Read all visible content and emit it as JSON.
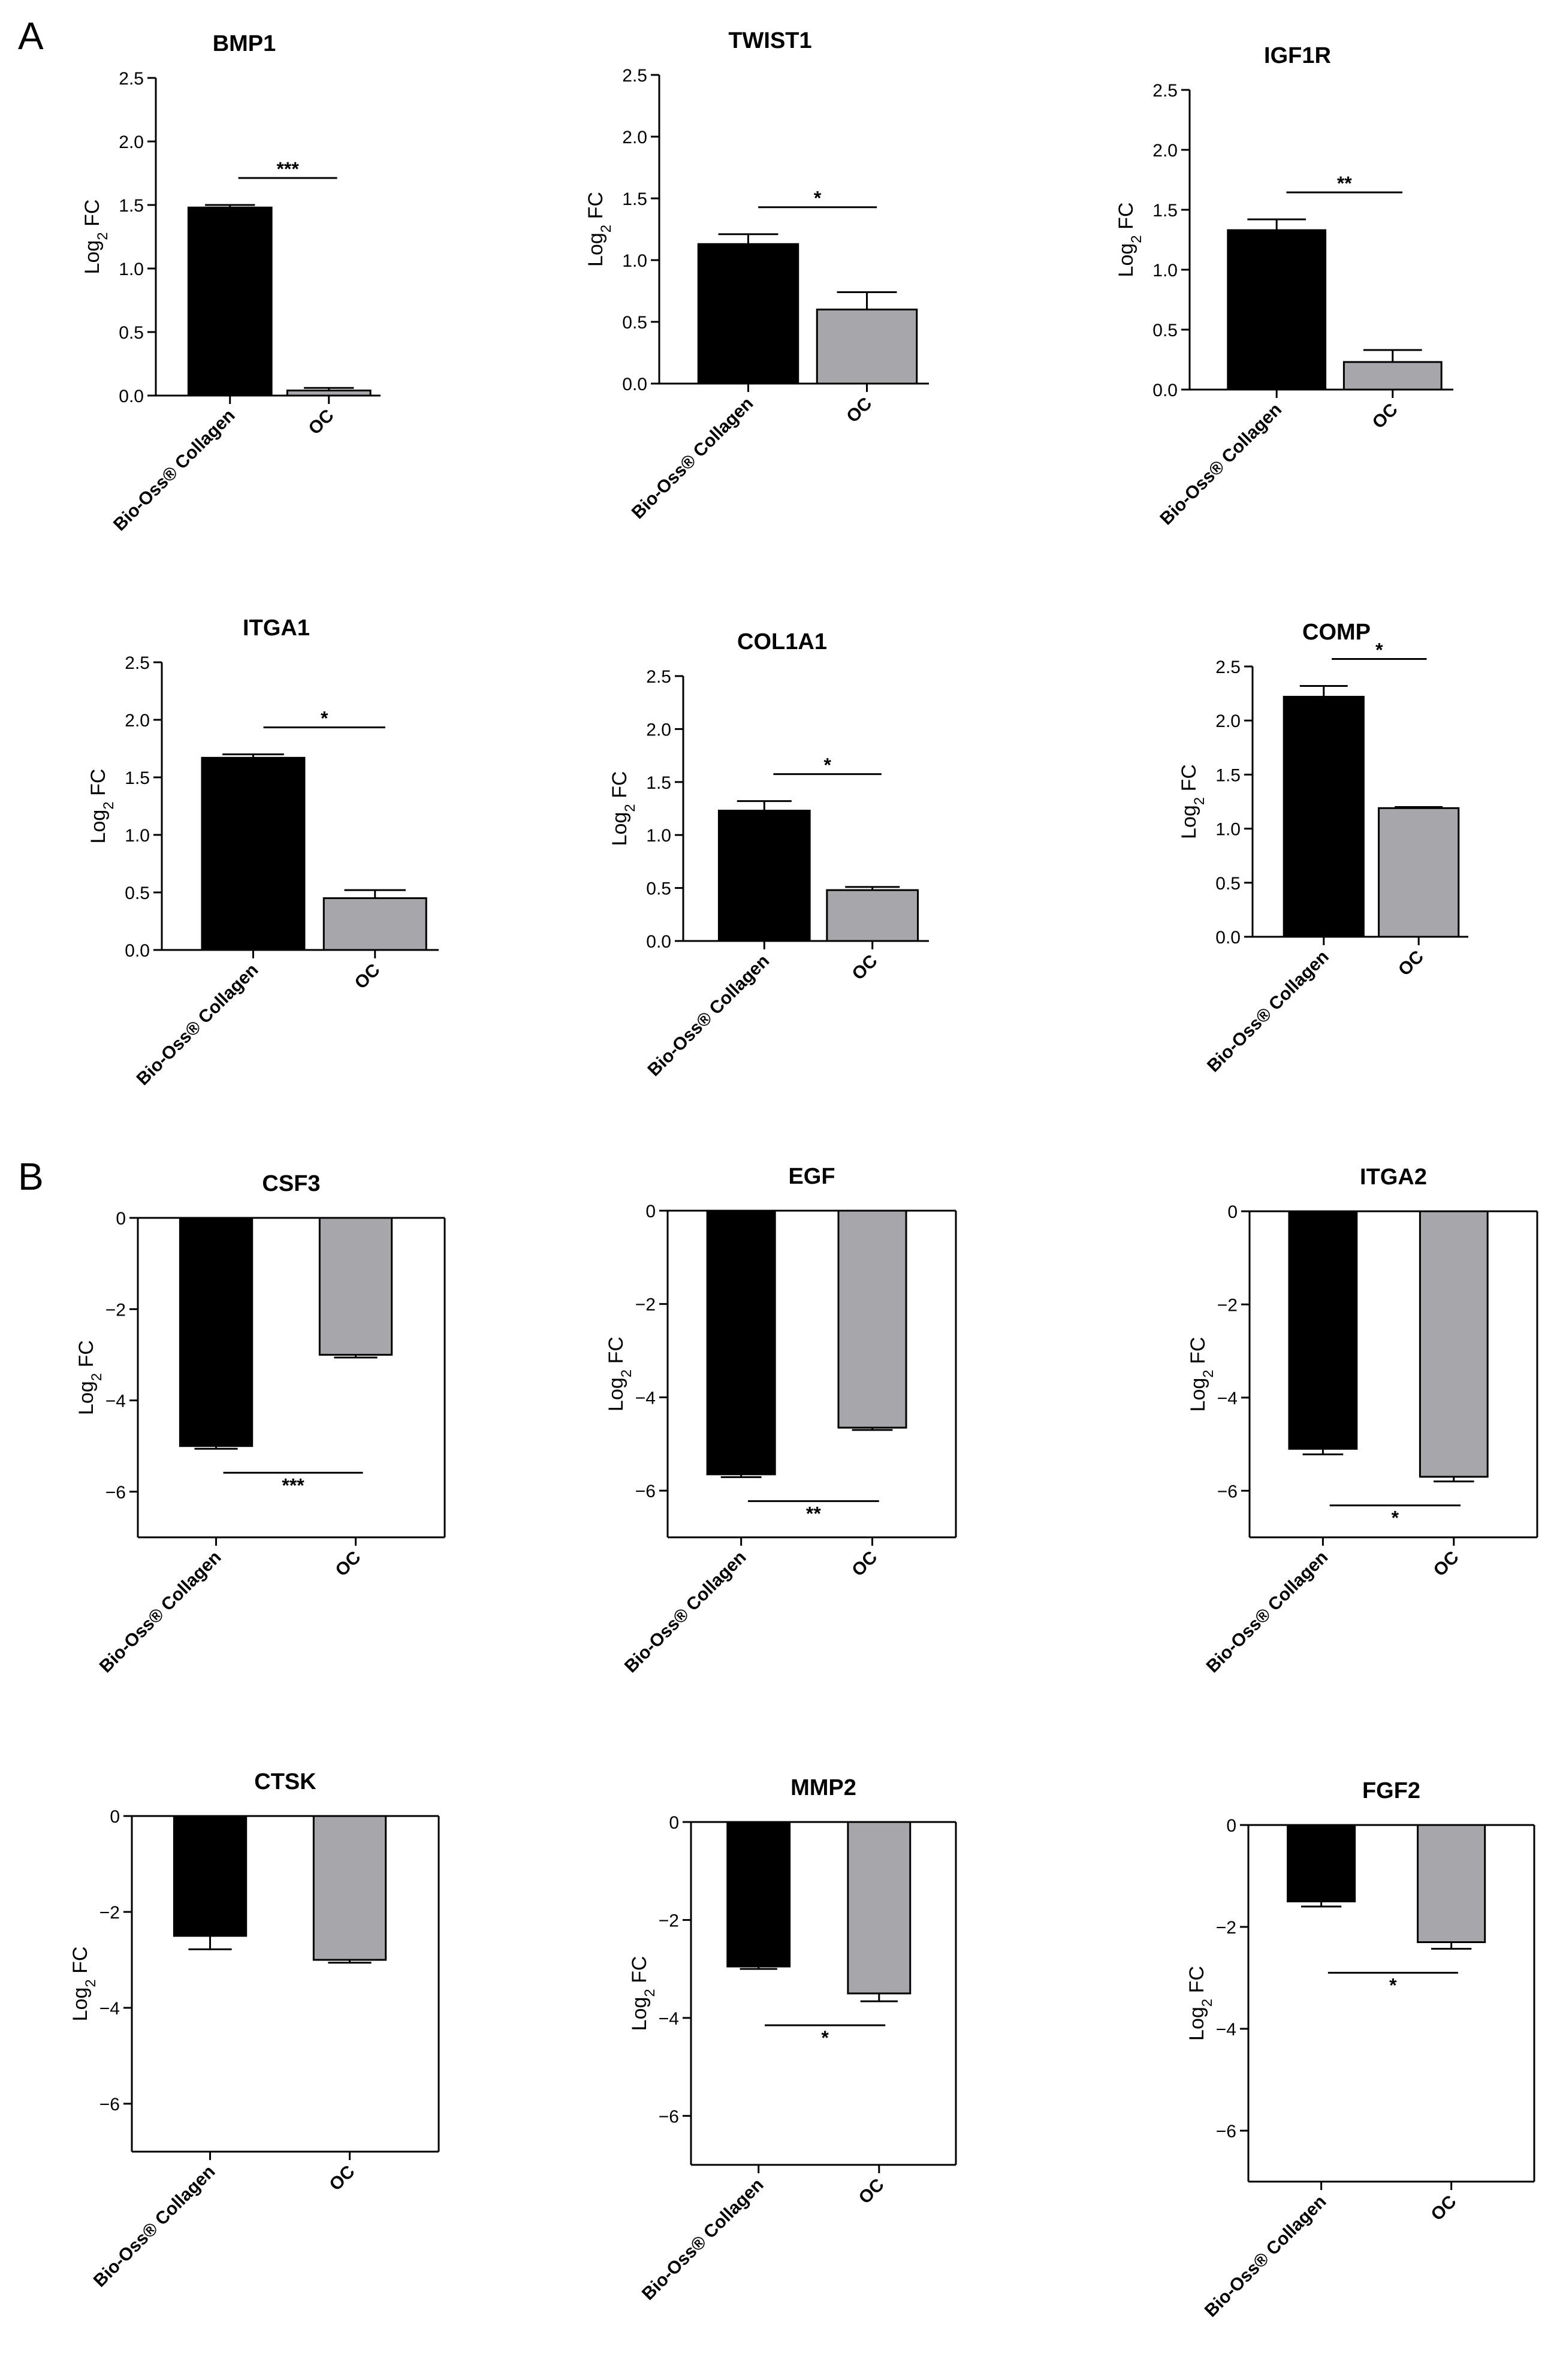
{
  "panels": [
    {
      "letter": "A"
    },
    {
      "letter": "B"
    }
  ],
  "colors": {
    "group1": "#000000",
    "group2": "#a7a7ab",
    "axis": "#000000"
  },
  "chart_data": [
    {
      "panel": "A",
      "type": "bar",
      "title": "BMP1",
      "ylabel": "Log",
      "ylabel_sub": "2",
      "ylabel_suffix": " FC",
      "categories": [
        "Bio-Oss® Collagen",
        "OC"
      ],
      "values": [
        1.48,
        0.04
      ],
      "errors": [
        0.02,
        0.02
      ],
      "ylim": [
        0,
        2.5
      ],
      "ticks": [
        "0.0",
        "0.5",
        "1.0",
        "1.5",
        "2.0",
        "2.5"
      ],
      "significance": "***"
    },
    {
      "panel": "A",
      "type": "bar",
      "title": "TWIST1",
      "ylabel": "Log",
      "ylabel_sub": "2",
      "ylabel_suffix": " FC",
      "categories": [
        "Bio-Oss® Collagen",
        "OC"
      ],
      "values": [
        1.13,
        0.6
      ],
      "errors": [
        0.08,
        0.14
      ],
      "ylim": [
        0,
        2.5
      ],
      "ticks": [
        "0.0",
        "0.5",
        "1.0",
        "1.5",
        "2.0",
        "2.5"
      ],
      "significance": "*"
    },
    {
      "panel": "A",
      "type": "bar",
      "title": "IGF1R",
      "ylabel": "Log",
      "ylabel_sub": "2",
      "ylabel_suffix": " FC",
      "categories": [
        "Bio-Oss® Collagen",
        "OC"
      ],
      "values": [
        1.33,
        0.23
      ],
      "errors": [
        0.09,
        0.1
      ],
      "ylim": [
        0,
        2.5
      ],
      "ticks": [
        "0.0",
        "0.5",
        "1.0",
        "1.5",
        "2.0",
        "2.5"
      ],
      "significance": "**"
    },
    {
      "panel": "A",
      "type": "bar",
      "title": "ITGA1",
      "ylabel": "Log",
      "ylabel_sub": "2",
      "ylabel_suffix": " FC",
      "categories": [
        "Bio-Oss® Collagen",
        "OC"
      ],
      "values": [
        1.67,
        0.45
      ],
      "errors": [
        0.03,
        0.07
      ],
      "ylim": [
        0,
        2.5
      ],
      "ticks": [
        "0.0",
        "0.5",
        "1.0",
        "1.5",
        "2.0",
        "2.5"
      ],
      "significance": "*"
    },
    {
      "panel": "A",
      "type": "bar",
      "title": "COL1A1",
      "ylabel": "Log",
      "ylabel_sub": "2",
      "ylabel_suffix": " FC",
      "categories": [
        "Bio-Oss® Collagen",
        "OC"
      ],
      "values": [
        1.23,
        0.48
      ],
      "errors": [
        0.09,
        0.03
      ],
      "ylim": [
        0,
        2.5
      ],
      "ticks": [
        "0.0",
        "0.5",
        "1.0",
        "1.5",
        "2.0",
        "2.5"
      ],
      "significance": "*"
    },
    {
      "panel": "A",
      "type": "bar",
      "title": "COMP",
      "ylabel": "Log",
      "ylabel_sub": "2",
      "ylabel_suffix": " FC",
      "categories": [
        "Bio-Oss® Collagen",
        "OC"
      ],
      "values": [
        2.22,
        1.19
      ],
      "errors": [
        0.1,
        0.01
      ],
      "ylim": [
        0,
        2.5
      ],
      "ticks": [
        "0.0",
        "0.5",
        "1.0",
        "1.5",
        "2.0",
        "2.5"
      ],
      "significance": "*"
    },
    {
      "panel": "B",
      "type": "bar",
      "title": "CSF3",
      "ylabel": "Log",
      "ylabel_sub": "2",
      "ylabel_suffix": " FC",
      "categories": [
        "Bio-Oss® Collagen",
        "OC"
      ],
      "values": [
        -5.0,
        -3.0
      ],
      "errors": [
        0.06,
        0.06
      ],
      "ylim": [
        -7,
        0
      ],
      "ticks": [
        "0",
        "−2",
        "−4",
        "−6"
      ],
      "tick_values": [
        0,
        -2,
        -4,
        -6
      ],
      "significance": "***"
    },
    {
      "panel": "B",
      "type": "bar",
      "title": "EGF",
      "ylabel": "Log",
      "ylabel_sub": "2",
      "ylabel_suffix": " FC",
      "categories": [
        "Bio-Oss® Collagen",
        "OC"
      ],
      "values": [
        -5.65,
        -4.65
      ],
      "errors": [
        0.06,
        0.05
      ],
      "ylim": [
        -7,
        0
      ],
      "ticks": [
        "0",
        "−2",
        "−4",
        "−6"
      ],
      "tick_values": [
        0,
        -2,
        -4,
        -6
      ],
      "significance": "**"
    },
    {
      "panel": "B",
      "type": "bar",
      "title": "ITGA2",
      "ylabel": "Log",
      "ylabel_sub": "2",
      "ylabel_suffix": " FC",
      "categories": [
        "Bio-Oss® Collagen",
        "OC"
      ],
      "values": [
        -5.1,
        -5.7
      ],
      "errors": [
        0.12,
        0.1
      ],
      "ylim": [
        -7,
        0
      ],
      "ticks": [
        "0",
        "−2",
        "−4",
        "−6"
      ],
      "tick_values": [
        0,
        -2,
        -4,
        -6
      ],
      "significance": "*"
    },
    {
      "panel": "B",
      "type": "bar",
      "title": "CTSK",
      "ylabel": "Log",
      "ylabel_sub": "2",
      "ylabel_suffix": " FC",
      "categories": [
        "Bio-Oss® Collagen",
        "OC"
      ],
      "values": [
        -2.5,
        -3.0
      ],
      "errors": [
        0.28,
        0.06
      ],
      "ylim": [
        -7,
        0
      ],
      "ticks": [
        "0",
        "−2",
        "−4",
        "−6"
      ],
      "tick_values": [
        0,
        -2,
        -4,
        -6
      ],
      "significance": ""
    },
    {
      "panel": "B",
      "type": "bar",
      "title": "MMP2",
      "ylabel": "Log",
      "ylabel_sub": "2",
      "ylabel_suffix": " FC",
      "categories": [
        "Bio-Oss® Collagen",
        "OC"
      ],
      "values": [
        -2.95,
        -3.5
      ],
      "errors": [
        0.05,
        0.16
      ],
      "ylim": [
        -7,
        0
      ],
      "ticks": [
        "0",
        "−2",
        "−4",
        "−6"
      ],
      "tick_values": [
        0,
        -2,
        -4,
        -6
      ],
      "significance": "*"
    },
    {
      "panel": "B",
      "type": "bar",
      "title": "FGF2",
      "ylabel": "Log",
      "ylabel_sub": "2",
      "ylabel_suffix": " FC",
      "categories": [
        "Bio-Oss® Collagen",
        "OC"
      ],
      "values": [
        -1.5,
        -2.3
      ],
      "errors": [
        0.1,
        0.13
      ],
      "ylim": [
        -7,
        0
      ],
      "ticks": [
        "0",
        "−2",
        "−4",
        "−6"
      ],
      "tick_values": [
        0,
        -2,
        -4,
        -6
      ],
      "significance": "*"
    }
  ]
}
